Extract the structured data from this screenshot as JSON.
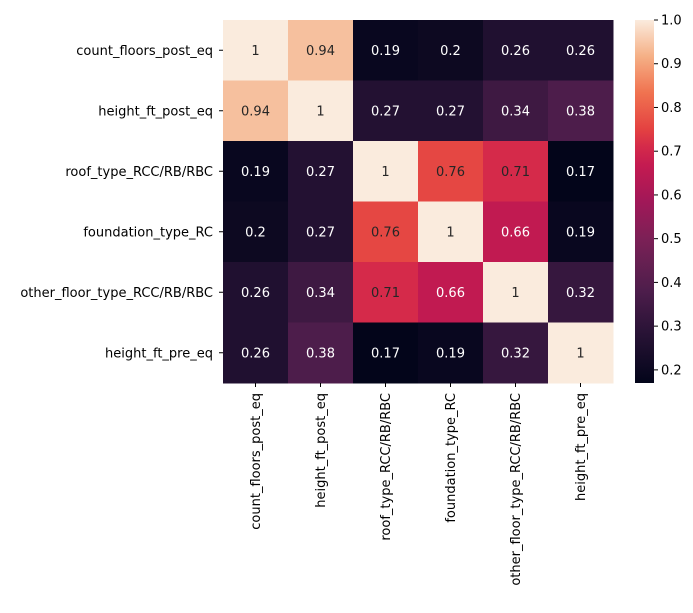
{
  "chart_data": {
    "type": "heatmap",
    "title": "",
    "xlabel": "",
    "ylabel": "",
    "row_labels": [
      "count_floors_post_eq",
      "height_ft_post_eq",
      "roof_type_RCC/RB/RBC",
      "foundation_type_RC",
      "other_floor_type_RCC/RB/RBC",
      "height_ft_pre_eq"
    ],
    "col_labels": [
      "count_floors_post_eq",
      "height_ft_post_eq",
      "roof_type_RCC/RB/RBC",
      "foundation_type_RC",
      "other_floor_type_RCC/RB/RBC",
      "height_ft_pre_eq"
    ],
    "values": [
      [
        1,
        0.94,
        0.19,
        0.2,
        0.26,
        0.26
      ],
      [
        0.94,
        1,
        0.27,
        0.27,
        0.34,
        0.38
      ],
      [
        0.19,
        0.27,
        1,
        0.76,
        0.71,
        0.17
      ],
      [
        0.2,
        0.27,
        0.76,
        1,
        0.66,
        0.19
      ],
      [
        0.26,
        0.34,
        0.71,
        0.66,
        1,
        0.32
      ],
      [
        0.26,
        0.38,
        0.17,
        0.19,
        0.32,
        1
      ]
    ],
    "colorbar": {
      "vmin": 0.17,
      "vmax": 1.0,
      "ticks": [
        0.2,
        0.3,
        0.4,
        0.5,
        0.6,
        0.7,
        0.8,
        0.9,
        1.0
      ],
      "tick_labels": [
        "0.2",
        "0.3",
        "0.4",
        "0.5",
        "0.6",
        "0.7",
        "0.8",
        "0.9",
        "1.0"
      ],
      "colormap": "rocket"
    },
    "annotations": true
  }
}
